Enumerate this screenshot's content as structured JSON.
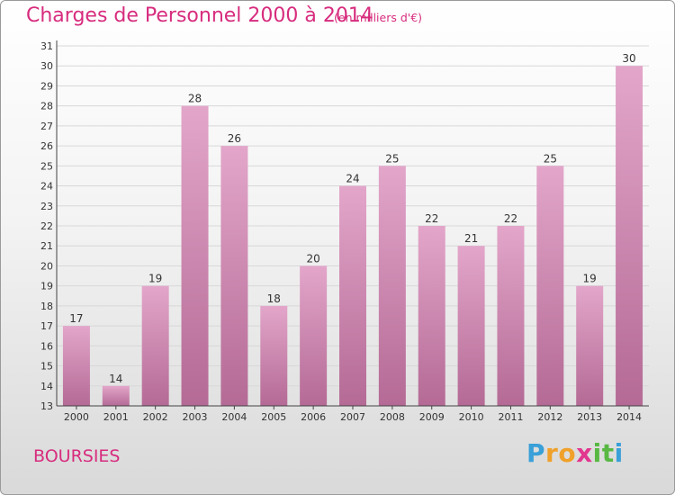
{
  "title": "Charges de Personnel 2000 à 2014",
  "subtitle": "(en milliers d'€)",
  "place": "BOURSIES",
  "logo": {
    "letters": [
      {
        "ch": "P",
        "color": "#3aa0d8"
      },
      {
        "ch": "r",
        "color": "#f0a12a"
      },
      {
        "ch": "o",
        "color": "#f0a12a"
      },
      {
        "ch": "x",
        "color": "#e2378f"
      },
      {
        "ch": "i",
        "color": "#58b843"
      },
      {
        "ch": "t",
        "color": "#58b843"
      },
      {
        "ch": "i",
        "color": "#3aa0d8"
      }
    ]
  },
  "chart_data": {
    "type": "bar",
    "title": "Charges de Personnel 2000 à 2014",
    "subtitle": "(en milliers d'€)",
    "categories": [
      "2000",
      "2001",
      "2002",
      "2003",
      "2004",
      "2005",
      "2006",
      "2007",
      "2008",
      "2009",
      "2010",
      "2011",
      "2012",
      "2013",
      "2014"
    ],
    "values": [
      17,
      14,
      19,
      28,
      26,
      18,
      20,
      24,
      25,
      22,
      21,
      22,
      25,
      19,
      30
    ],
    "ylim": [
      13,
      31
    ],
    "yticks": [
      13,
      14,
      15,
      16,
      17,
      18,
      19,
      20,
      21,
      22,
      23,
      24,
      25,
      26,
      27,
      28,
      29,
      30,
      31
    ],
    "grid": true,
    "bar_color": "#cf7fae",
    "xlabel": "",
    "ylabel": ""
  }
}
